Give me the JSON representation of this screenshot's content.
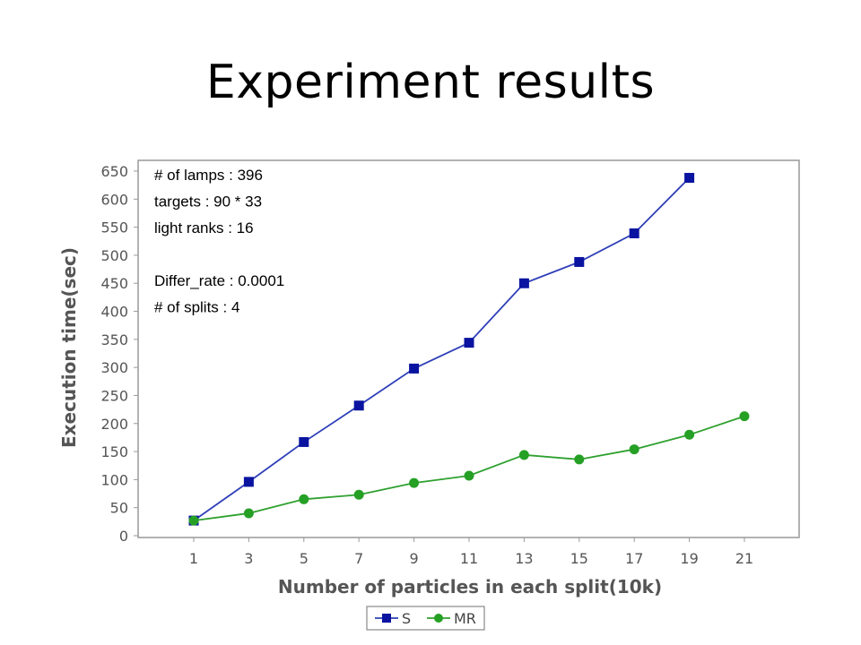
{
  "slide": {
    "title": "Experiment results"
  },
  "chart_data": {
    "type": "line",
    "title": "",
    "xlabel": "Number of particles in each split(10k)",
    "ylabel": "Execution time(sec)",
    "categories": [
      "1",
      "3",
      "5",
      "7",
      "9",
      "11",
      "13",
      "15",
      "17",
      "19",
      "21"
    ],
    "ylim": [
      0,
      650
    ],
    "yticks": [
      0,
      50,
      100,
      150,
      200,
      250,
      300,
      350,
      400,
      450,
      500,
      550,
      600,
      650
    ],
    "grid": false,
    "legend_position": "bottom",
    "series": [
      {
        "name": "S",
        "marker": "square",
        "color": "#2f3fb8",
        "marker_color": "#0a14a0",
        "values": [
          27,
          96,
          167,
          232,
          298,
          344,
          450,
          488,
          539,
          638,
          null
        ]
      },
      {
        "name": "MR",
        "marker": "circle",
        "color": "#2ea02e",
        "marker_color": "#25a025",
        "values": [
          27,
          40,
          65,
          73,
          94,
          107,
          144,
          136,
          154,
          180,
          213
        ]
      }
    ],
    "annotations": [
      "# of lamps : 396",
      "targets : 90 * 33",
      "light ranks : 16",
      "",
      "Differ_rate : 0.0001",
      "# of splits : 4"
    ]
  }
}
